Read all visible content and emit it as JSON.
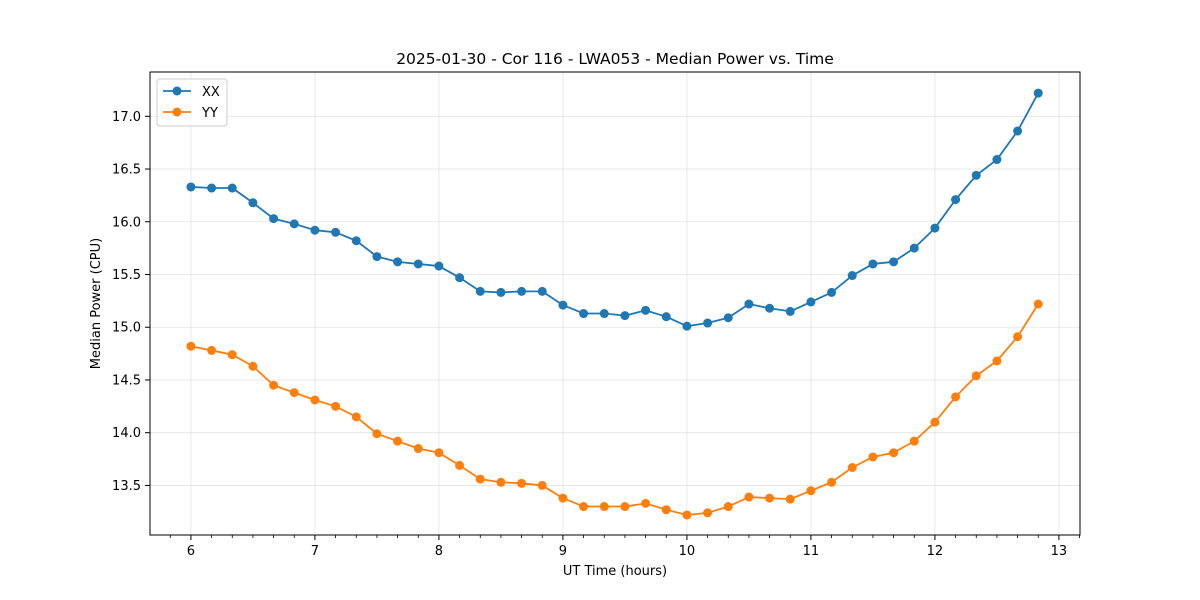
{
  "chart_data": {
    "type": "line",
    "title": "2025-01-30 - Cor 116 - LWA053 - Median Power vs. Time",
    "xlabel": "UT Time (hours)",
    "ylabel": "Median Power (CPU)",
    "xlim": [
      5.67,
      13.17
    ],
    "ylim": [
      13.03,
      17.42
    ],
    "xticks": [
      6,
      7,
      8,
      9,
      10,
      11,
      12,
      13
    ],
    "xtick_labels": [
      "6",
      "7",
      "8",
      "9",
      "10",
      "11",
      "12",
      "13"
    ],
    "yticks": [
      13.5,
      14.0,
      14.5,
      15.0,
      15.5,
      16.0,
      16.5,
      17.0
    ],
    "ytick_labels": [
      "13.5",
      "14.0",
      "14.5",
      "15.0",
      "15.5",
      "16.0",
      "16.5",
      "17.0"
    ],
    "grid": true,
    "legend_position": "top-left",
    "x": [
      6.0,
      6.1667,
      6.3333,
      6.5,
      6.6667,
      6.8333,
      7.0,
      7.1667,
      7.3333,
      7.5,
      7.6667,
      7.8333,
      8.0,
      8.1667,
      8.3333,
      8.5,
      8.6667,
      8.8333,
      9.0,
      9.1667,
      9.3333,
      9.5,
      9.6667,
      9.8333,
      10.0,
      10.1667,
      10.3333,
      10.5,
      10.6667,
      10.8333,
      11.0,
      11.1667,
      11.3333,
      11.5,
      11.6667,
      11.8333,
      12.0,
      12.1667,
      12.3333,
      12.5,
      12.6667,
      12.8333
    ],
    "series": [
      {
        "name": "XX",
        "color": "#1f77b4",
        "values": [
          16.33,
          16.32,
          16.32,
          16.18,
          16.03,
          15.98,
          15.92,
          15.9,
          15.82,
          15.67,
          15.62,
          15.6,
          15.58,
          15.47,
          15.34,
          15.33,
          15.34,
          15.34,
          15.21,
          15.13,
          15.13,
          15.11,
          15.16,
          15.1,
          15.01,
          15.04,
          15.09,
          15.22,
          15.18,
          15.15,
          15.24,
          15.33,
          15.49,
          15.6,
          15.62,
          15.75,
          15.94,
          16.21,
          16.44,
          16.59,
          16.86,
          17.22
        ]
      },
      {
        "name": "YY",
        "color": "#ff7f0e",
        "values": [
          14.82,
          14.78,
          14.74,
          14.63,
          14.45,
          14.38,
          14.31,
          14.25,
          14.15,
          13.99,
          13.92,
          13.85,
          13.81,
          13.69,
          13.56,
          13.53,
          13.52,
          13.5,
          13.38,
          13.3,
          13.3,
          13.3,
          13.33,
          13.27,
          13.22,
          13.24,
          13.3,
          13.39,
          13.38,
          13.37,
          13.45,
          13.53,
          13.67,
          13.77,
          13.81,
          13.92,
          14.1,
          14.34,
          14.54,
          14.68,
          14.91,
          15.22
        ]
      }
    ]
  }
}
